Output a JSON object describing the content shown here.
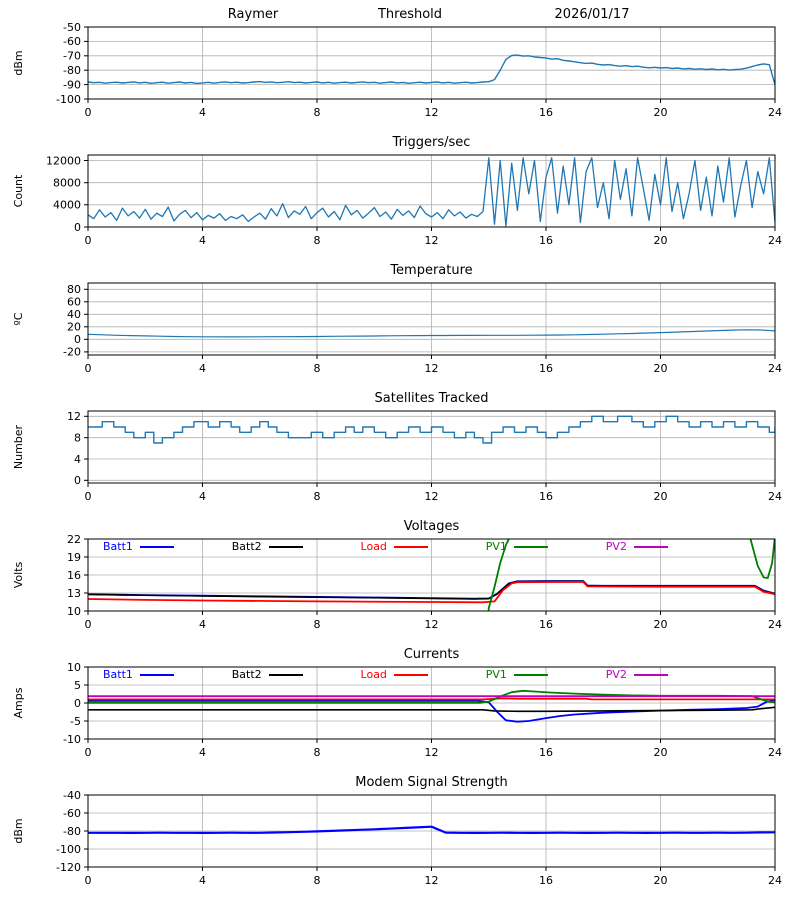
{
  "page": {
    "background": "#ffffff",
    "grid_color": "#b0b0b0",
    "default_line_color": "#1f77b4"
  },
  "chart_data": [
    {
      "type": "line",
      "title_parts": [
        "Raymer",
        "Threshold",
        "2026/01/17"
      ],
      "ylabel": "dBm",
      "xlim": [
        0,
        24
      ],
      "ylim": [
        -100,
        -50
      ],
      "xticks": [
        0,
        4,
        8,
        12,
        16,
        20,
        24
      ],
      "yticks": [
        -100,
        -90,
        -80,
        -70,
        -60,
        -50
      ],
      "grid": true,
      "series": [
        {
          "name": "threshold-level",
          "color": "#1f77b4",
          "width": 1.4,
          "x0": 0,
          "dx": 0.2,
          "y": [
            -88.2,
            -88.7,
            -88.4,
            -89.0,
            -88.6,
            -88.3,
            -88.9,
            -88.5,
            -88.1,
            -88.8,
            -88.4,
            -89.1,
            -88.7,
            -88.3,
            -89.0,
            -88.6,
            -88.2,
            -88.9,
            -88.5,
            -89.2,
            -88.8,
            -88.4,
            -89.0,
            -88.5,
            -88.1,
            -88.7,
            -88.3,
            -88.9,
            -88.6,
            -88.2,
            -87.9,
            -88.5,
            -88.1,
            -88.7,
            -88.4,
            -88.0,
            -88.6,
            -88.3,
            -88.9,
            -88.5,
            -88.2,
            -88.8,
            -88.4,
            -89.0,
            -88.6,
            -88.3,
            -88.9,
            -88.5,
            -88.1,
            -88.7,
            -88.4,
            -89.0,
            -88.6,
            -88.2,
            -88.8,
            -88.5,
            -89.1,
            -88.7,
            -88.3,
            -88.9,
            -88.5,
            -88.2,
            -88.8,
            -88.4,
            -89.0,
            -88.7,
            -88.3,
            -88.9,
            -88.6,
            -88.2,
            -88.0,
            -86.5,
            -80.0,
            -72.5,
            -69.8,
            -69.5,
            -70.2,
            -70.0,
            -70.8,
            -71.2,
            -71.6,
            -72.3,
            -72.0,
            -73.1,
            -73.6,
            -74.2,
            -74.8,
            -75.3,
            -75.1,
            -75.9,
            -76.4,
            -76.1,
            -76.8,
            -77.2,
            -76.9,
            -77.5,
            -77.2,
            -77.9,
            -78.3,
            -78.0,
            -78.5,
            -78.2,
            -78.8,
            -78.5,
            -79.1,
            -78.8,
            -79.3,
            -79.0,
            -79.5,
            -79.2,
            -79.7,
            -79.4,
            -79.9,
            -79.6,
            -79.3,
            -78.6,
            -77.5,
            -76.4,
            -75.6,
            -76.2,
            -90.0
          ]
        }
      ]
    },
    {
      "type": "line",
      "title": "Triggers/sec",
      "ylabel": "Count",
      "xlim": [
        0,
        24
      ],
      "ylim": [
        0,
        13000
      ],
      "xticks": [
        0,
        4,
        8,
        12,
        16,
        20,
        24
      ],
      "yticks": [
        0,
        4000,
        8000,
        12000
      ],
      "grid": true,
      "series": [
        {
          "name": "triggers",
          "color": "#1f77b4",
          "width": 1.3,
          "x0": 0,
          "dx": 0.2,
          "y": [
            2200,
            1500,
            3100,
            1800,
            2600,
            1200,
            3400,
            2000,
            2800,
            1600,
            3200,
            1400,
            2500,
            1900,
            3600,
            1100,
            2300,
            3000,
            1700,
            2600,
            1300,
            2100,
            1600,
            2400,
            1200,
            1900,
            1500,
            2200,
            1000,
            1800,
            2500,
            1400,
            3300,
            2000,
            4200,
            1700,
            2900,
            2300,
            3700,
            1500,
            2600,
            3400,
            1800,
            2800,
            1300,
            3900,
            2200,
            3000,
            1600,
            2500,
            3500,
            1900,
            2700,
            1400,
            3200,
            2100,
            2900,
            1700,
            3800,
            2400,
            1800,
            2600,
            1500,
            3100,
            2000,
            2700,
            1600,
            2300,
            1900,
            2800,
            12500,
            500,
            12000,
            200,
            11500,
            3000,
            12500,
            6000,
            12000,
            1000,
            9000,
            12500,
            2500,
            11000,
            4000,
            12500,
            800,
            10000,
            12500,
            3500,
            8000,
            1500,
            12000,
            5000,
            10500,
            2000,
            12500,
            7000,
            1200,
            9500,
            4000,
            12500,
            2800,
            8000,
            1500,
            6000,
            12000,
            3000,
            9000,
            2000,
            11000,
            4500,
            12500,
            1800,
            7500,
            12000,
            3500,
            10000,
            6000,
            12500,
            800
          ]
        }
      ]
    },
    {
      "type": "line",
      "title": "Temperature",
      "ylabel": "ºC",
      "xlim": [
        0,
        24
      ],
      "ylim": [
        -25,
        90
      ],
      "xticks": [
        0,
        4,
        8,
        12,
        16,
        20,
        24
      ],
      "yticks": [
        -20,
        0,
        20,
        40,
        60,
        80
      ],
      "grid": true,
      "series": [
        {
          "name": "temperature",
          "color": "#1f77b4",
          "width": 1.2,
          "x0": 0,
          "dx": 0.5,
          "y": [
            8.0,
            7.2,
            6.5,
            6.0,
            5.5,
            5.0,
            4.6,
            4.3,
            4.1,
            4.0,
            3.9,
            4.0,
            4.1,
            4.2,
            4.3,
            4.4,
            4.6,
            4.8,
            5.0,
            5.2,
            5.4,
            5.6,
            5.8,
            6.0,
            6.1,
            6.2,
            6.3,
            6.3,
            6.4,
            6.4,
            6.5,
            6.6,
            6.8,
            7.0,
            7.3,
            7.7,
            8.2,
            8.8,
            9.4,
            10.1,
            10.8,
            11.6,
            12.4,
            13.2,
            14.0,
            14.7,
            15.2,
            15.0,
            13.5
          ]
        }
      ]
    },
    {
      "type": "line",
      "title": "Satellites Tracked",
      "ylabel": "Number",
      "xlim": [
        0,
        24
      ],
      "ylim": [
        -0.5,
        13
      ],
      "xticks": [
        0,
        4,
        8,
        12,
        16,
        20,
        24
      ],
      "yticks": [
        0,
        4,
        8,
        12
      ],
      "grid": true,
      "series": [
        {
          "name": "satellites",
          "color": "#1f77b4",
          "width": 1.4,
          "step": true,
          "x": [
            0,
            0.5,
            0.9,
            1.3,
            1.6,
            2.0,
            2.3,
            2.6,
            3.0,
            3.3,
            3.7,
            4.2,
            4.6,
            5.0,
            5.3,
            5.7,
            6.0,
            6.3,
            6.6,
            7.0,
            7.4,
            7.8,
            8.2,
            8.6,
            9.0,
            9.3,
            9.6,
            10.0,
            10.4,
            10.8,
            11.2,
            11.6,
            12.0,
            12.4,
            12.8,
            13.2,
            13.5,
            13.8,
            14.1,
            14.5,
            14.9,
            15.3,
            15.7,
            16.0,
            16.4,
            16.8,
            17.2,
            17.6,
            18.0,
            18.5,
            19.0,
            19.4,
            19.8,
            20.2,
            20.6,
            21.0,
            21.4,
            21.8,
            22.2,
            22.6,
            23.0,
            23.4,
            23.8,
            24.0
          ],
          "y": [
            10,
            11,
            10,
            9,
            8,
            9,
            7,
            8,
            9,
            10,
            11,
            10,
            11,
            10,
            9,
            10,
            11,
            10,
            9,
            8,
            8,
            9,
            8,
            9,
            10,
            9,
            10,
            9,
            8,
            9,
            10,
            9,
            10,
            9,
            8,
            9,
            8,
            7,
            9,
            10,
            9,
            10,
            9,
            8,
            9,
            10,
            11,
            12,
            11,
            12,
            11,
            10,
            11,
            12,
            11,
            10,
            11,
            10,
            11,
            10,
            11,
            10,
            9,
            10
          ]
        }
      ]
    },
    {
      "type": "line",
      "title": "Voltages",
      "ylabel": "Volts",
      "xlim": [
        0,
        24
      ],
      "ylim": [
        10,
        22
      ],
      "xticks": [
        0,
        4,
        8,
        12,
        16,
        20,
        24
      ],
      "yticks": [
        10,
        13,
        16,
        19,
        22
      ],
      "grid": true,
      "legend": [
        {
          "label": "Batt1",
          "color": "#0000ff"
        },
        {
          "label": "Batt2",
          "color": "#000000"
        },
        {
          "label": "Load",
          "color": "#ff0000"
        },
        {
          "label": "PV1",
          "color": "#008000"
        },
        {
          "label": "PV2",
          "color": "#bf00bf"
        }
      ],
      "series": [
        {
          "name": "Batt1",
          "color": "#0000ff",
          "width": 1.8,
          "x": [
            0,
            2,
            4,
            6,
            8,
            10,
            12,
            13.5,
            14.0,
            14.3,
            14.7,
            15.0,
            16,
            17.3,
            17.45,
            18,
            20,
            22,
            23.3,
            23.6,
            24
          ],
          "y": [
            12.8,
            12.65,
            12.55,
            12.45,
            12.35,
            12.25,
            12.15,
            12.05,
            12.1,
            12.9,
            14.6,
            14.95,
            15.0,
            15.0,
            14.25,
            14.2,
            14.2,
            14.2,
            14.2,
            13.4,
            12.9
          ]
        },
        {
          "name": "Batt2",
          "color": "#000000",
          "width": 1.6,
          "x": [
            0,
            4,
            8,
            12,
            13.5,
            14.0,
            14.3,
            14.7,
            15.0,
            17.3,
            17.45,
            20,
            23.3,
            23.6,
            24
          ],
          "y": [
            12.75,
            12.5,
            12.3,
            12.1,
            12.0,
            12.05,
            12.85,
            14.55,
            14.9,
            14.95,
            14.2,
            14.15,
            14.15,
            13.35,
            12.85
          ]
        },
        {
          "name": "Load",
          "color": "#ff0000",
          "width": 1.8,
          "x": [
            0,
            2,
            4,
            8,
            12,
            13.8,
            14.2,
            14.5,
            14.8,
            15.0,
            17.3,
            17.45,
            20,
            23.3,
            23.6,
            24
          ],
          "y": [
            12.0,
            11.85,
            11.75,
            11.6,
            11.5,
            11.45,
            11.6,
            13.5,
            14.6,
            14.8,
            14.85,
            14.1,
            14.05,
            14.05,
            13.2,
            12.8
          ]
        },
        {
          "name": "PV1",
          "color": "#008000",
          "width": 1.8,
          "x": [
            0,
            13.8,
            14.0,
            14.2,
            14.4,
            14.6,
            14.8,
            15.0,
            23.0,
            23.2,
            23.4,
            23.6,
            23.75,
            23.9,
            24
          ],
          "y": [
            0.1,
            0.1,
            10.5,
            14.0,
            18.0,
            21.0,
            23.0,
            24.5,
            24.5,
            21.0,
            17.5,
            15.6,
            15.5,
            18.0,
            22.5
          ]
        },
        {
          "name": "PV2",
          "color": "#bf00bf",
          "width": 1.8,
          "x": [
            0,
            24
          ],
          "y": [
            0.05,
            0.05
          ]
        }
      ]
    },
    {
      "type": "line",
      "title": "Currents",
      "ylabel": "Amps",
      "xlim": [
        0,
        24
      ],
      "ylim": [
        -10,
        10
      ],
      "xticks": [
        0,
        4,
        8,
        12,
        16,
        20,
        24
      ],
      "yticks": [
        -10,
        -5,
        0,
        5,
        10
      ],
      "grid": true,
      "legend": [
        {
          "label": "Batt1",
          "color": "#0000ff"
        },
        {
          "label": "Batt2",
          "color": "#000000"
        },
        {
          "label": "Load",
          "color": "#ff0000"
        },
        {
          "label": "PV1",
          "color": "#008000"
        },
        {
          "label": "PV2",
          "color": "#bf00bf"
        }
      ],
      "series": [
        {
          "name": "Batt1",
          "color": "#0000ff",
          "width": 1.8,
          "x": [
            0,
            4,
            8,
            12,
            13.6,
            14.0,
            14.3,
            14.6,
            15.0,
            15.4,
            16.0,
            16.5,
            17,
            18,
            19,
            20,
            21,
            22,
            23,
            23.4,
            23.7,
            24
          ],
          "y": [
            0.6,
            0.6,
            0.6,
            0.6,
            0.6,
            0.2,
            -2.5,
            -4.8,
            -5.2,
            -5.0,
            -4.2,
            -3.6,
            -3.2,
            -2.7,
            -2.4,
            -2.1,
            -1.9,
            -1.7,
            -1.4,
            -1.0,
            0.3,
            0.8
          ]
        },
        {
          "name": "Batt2",
          "color": "#000000",
          "width": 1.6,
          "x": [
            0,
            8,
            13.8,
            14.2,
            15,
            16,
            18,
            20,
            22,
            23.2,
            23.6,
            24
          ],
          "y": [
            -1.9,
            -1.9,
            -1.9,
            -2.2,
            -2.3,
            -2.3,
            -2.2,
            -2.1,
            -2.0,
            -1.9,
            -1.5,
            -1.2
          ]
        },
        {
          "name": "Load",
          "color": "#ff0000",
          "width": 1.8,
          "x": [
            0,
            13.8,
            14.5,
            15,
            17.4,
            17.6,
            24
          ],
          "y": [
            1.0,
            1.0,
            1.3,
            1.2,
            1.2,
            1.0,
            1.0
          ]
        },
        {
          "name": "PV1",
          "color": "#008000",
          "width": 1.8,
          "x": [
            0,
            13.7,
            14.0,
            14.4,
            14.8,
            15.2,
            15.6,
            16.2,
            17,
            18,
            19,
            20,
            21,
            22,
            23.2,
            23.6,
            23.8,
            24
          ],
          "y": [
            0.05,
            0.05,
            0.4,
            1.8,
            3.0,
            3.4,
            3.2,
            2.9,
            2.6,
            2.3,
            2.1,
            2.0,
            2.0,
            2.0,
            1.9,
            0.8,
            0.3,
            0.2
          ]
        },
        {
          "name": "PV2",
          "color": "#bf00bf",
          "width": 1.8,
          "x": [
            0,
            24
          ],
          "y": [
            1.9,
            1.9
          ]
        }
      ]
    },
    {
      "type": "line",
      "title": "Modem Signal Strength",
      "ylabel": "dBm",
      "xlim": [
        0,
        24
      ],
      "ylim": [
        -120,
        -40
      ],
      "xticks": [
        0,
        4,
        8,
        12,
        16,
        20,
        24
      ],
      "yticks": [
        -120,
        -100,
        -80,
        -60,
        -40
      ],
      "grid": true,
      "series": [
        {
          "name": "modem-rssi",
          "color": "#0000ff",
          "width": 2.2,
          "x0": 0,
          "dx": 0.5,
          "y": [
            -82.0,
            -82.0,
            -82.0,
            -82.1,
            -82.0,
            -81.9,
            -82.0,
            -82.0,
            -82.1,
            -82.0,
            -81.9,
            -82.0,
            -82.0,
            -81.7,
            -81.3,
            -80.9,
            -80.4,
            -79.9,
            -79.3,
            -78.7,
            -78.1,
            -77.4,
            -76.7,
            -76.0,
            -75.2,
            -81.8,
            -82.0,
            -82.1,
            -82.0,
            -81.9,
            -82.0,
            -82.1,
            -82.0,
            -81.9,
            -82.0,
            -82.1,
            -82.0,
            -81.9,
            -82.0,
            -82.1,
            -82.0,
            -81.9,
            -82.0,
            -82.0,
            -81.9,
            -82.0,
            -81.9,
            -81.6,
            -81.4
          ]
        }
      ]
    }
  ]
}
